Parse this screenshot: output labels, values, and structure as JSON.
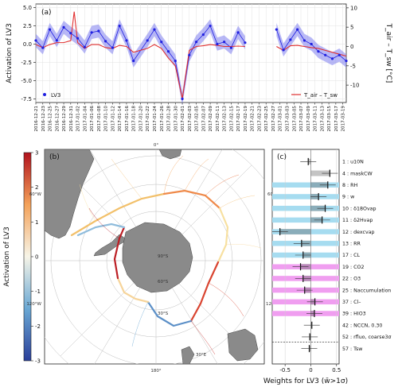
{
  "chart_data": [
    {
      "type": "line",
      "panel": "(a)",
      "ylabel": "Activation of LV3",
      "y2label": "T_air – T_sw [°C]",
      "ylim": [
        -8,
        5.5
      ],
      "yticks": [
        -7.5,
        -5.0,
        -2.5,
        0.0,
        2.5,
        5.0
      ],
      "y2lim": [
        -14.5,
        11
      ],
      "y2ticks": [
        -10,
        -5,
        0,
        5,
        10
      ],
      "xlim": [
        "2016-12-21",
        "2017-03-20"
      ],
      "x_tick_labels": [
        "2016-12-21",
        "2016-12-23",
        "2016-12-25",
        "2016-12-27",
        "2016-12-29",
        "2016-12-31",
        "2017-01-02",
        "2017-01-04",
        "2017-01-06",
        "2017-01-08",
        "2017-01-10",
        "2017-01-12",
        "2017-01-14",
        "2017-01-16",
        "2017-01-18",
        "2017-01-20",
        "2017-01-22",
        "2017-01-24",
        "2017-01-26",
        "2017-01-28",
        "2017-01-30",
        "2017-02-01",
        "2017-02-03",
        "2017-02-05",
        "2017-02-07",
        "2017-02-09",
        "2017-02-11",
        "2017-02-13",
        "2017-02-15",
        "2017-02-17",
        "2017-02-19",
        "2017-02-21",
        "2017-02-23",
        "2017-02-25",
        "2017-02-27",
        "2017-03-01",
        "2017-03-03",
        "2017-03-05",
        "2017-03-07",
        "2017-03-09",
        "2017-03-11",
        "2017-03-13",
        "2017-03-15",
        "2017-03-17",
        "2017-03-19"
      ],
      "grid": true,
      "series": [
        {
          "name": "LV3",
          "style": "points with ±1σ band",
          "color": "#1f1fe0",
          "band_color": "#7d7dee",
          "x": [
            "2016-12-21",
            "2016-12-23",
            "2016-12-25",
            "2016-12-27",
            "2016-12-29",
            "2016-12-31",
            "2017-01-02",
            "2017-01-04",
            "2017-01-06",
            "2017-01-08",
            "2017-01-10",
            "2017-01-12",
            "2017-01-14",
            "2017-01-16",
            "2017-01-18",
            "2017-01-22",
            "2017-01-24",
            "2017-01-26",
            "2017-01-28",
            "2017-01-30",
            "2017-02-01",
            "2017-02-03",
            "2017-02-05",
            "2017-02-07",
            "2017-02-09",
            "2017-02-11",
            "2017-02-13",
            "2017-02-15",
            "2017-02-17",
            "2017-02-19",
            "2017-02-28",
            "2017-03-02",
            "2017-03-04",
            "2017-03-06",
            "2017-03-08",
            "2017-03-10",
            "2017-03-12",
            "2017-03-14",
            "2017-03-16",
            "2017-03-18",
            "2017-03-20"
          ],
          "values": [
            0.5,
            -0.5,
            2.0,
            0.5,
            2.3,
            1.5,
            0.8,
            -0.4,
            1.6,
            1.8,
            0.4,
            -0.5,
            2.5,
            0.5,
            -2.3,
            0.5,
            2.0,
            0.3,
            -1.0,
            -2.3,
            -7.5,
            -1.5,
            0.3,
            1.3,
            2.5,
            0.0,
            0.3,
            -0.5,
            1.6,
            0.2,
            2.0,
            -0.8,
            0.6,
            2.0,
            0.5,
            0.0,
            -1.0,
            -1.5,
            -2.0,
            -1.5,
            -2.3
          ]
        },
        {
          "name": "T_air – T_sw",
          "style": "line",
          "color": "#e03030",
          "axis": "right",
          "x": [
            "2016-12-21",
            "2016-12-23",
            "2016-12-25",
            "2016-12-27",
            "2016-12-29",
            "2016-12-31",
            "2017-01-01",
            "2017-01-02",
            "2017-01-04",
            "2017-01-06",
            "2017-01-08",
            "2017-01-10",
            "2017-01-12",
            "2017-01-14",
            "2017-01-16",
            "2017-01-18",
            "2017-01-22",
            "2017-01-24",
            "2017-01-26",
            "2017-01-28",
            "2017-01-30",
            "2017-02-01",
            "2017-02-03",
            "2017-02-05",
            "2017-02-07",
            "2017-02-09",
            "2017-02-11",
            "2017-02-13",
            "2017-02-15",
            "2017-02-17",
            "2017-02-19",
            "2017-02-28",
            "2017-03-02",
            "2017-03-04",
            "2017-03-06",
            "2017-03-08",
            "2017-03-10",
            "2017-03-12",
            "2017-03-14",
            "2017-03-16",
            "2017-03-18",
            "2017-03-20"
          ],
          "values": [
            0.5,
            -0.3,
            0.5,
            1.0,
            1.0,
            1.5,
            9.0,
            1.0,
            -0.5,
            0.5,
            0.5,
            -0.3,
            -0.5,
            0.3,
            0.0,
            -1.5,
            -0.5,
            0.5,
            -0.5,
            -3.0,
            -5.0,
            -13.5,
            -1.0,
            0.0,
            0.2,
            0.5,
            0.3,
            0.0,
            0.0,
            0.1,
            0.0,
            0.0,
            -1.0,
            0.2,
            0.3,
            0.0,
            -0.3,
            -0.5,
            -1.0,
            -1.5,
            -2.0,
            -2.5
          ]
        }
      ],
      "legend": [
        {
          "label": "LV3",
          "placement": "lower-left"
        },
        {
          "label": "T_air – T_sw",
          "placement": "lower-right"
        }
      ]
    },
    {
      "type": "map",
      "panel": "(b)",
      "colorbar_label": "Activation of LV3",
      "colorbar_range": [
        -3,
        3
      ],
      "colorbar_ticks": [
        -3,
        -2,
        -1,
        0,
        1,
        2,
        3
      ],
      "lon_labels": [
        "0°",
        "60°E",
        "120°E",
        "180°",
        "120°W",
        "60°W",
        "30°E"
      ],
      "lat_labels": [
        "30°S",
        "60°S",
        "90°S"
      ]
    },
    {
      "type": "bar",
      "panel": "(c)",
      "xlabel": "Weights for LV3 (w̄>1σ)",
      "xlim": [
        -0.75,
        0.55
      ],
      "xticks": [
        -0.5,
        0.0,
        0.5
      ],
      "grid": true,
      "categories": [
        "1 : u10N",
        "4 : maskCW",
        "8 : RH",
        "9 : w",
        "10 : δ18Ovap",
        "11 : δ2Hvap",
        "12 : dexcvap",
        "13 : RR",
        "17 : CL",
        "19 : CO2",
        "22 : O3",
        "25 : Naccumulation",
        "37 : Cl–",
        "39 : HIO3",
        "42 : NCCN, 0.30",
        "52 : rfluo, coarse3σ",
        "57 : Tsw"
      ],
      "values": [
        -0.05,
        0.37,
        0.33,
        0.15,
        0.28,
        0.22,
        -0.6,
        -0.18,
        -0.15,
        -0.2,
        -0.15,
        -0.12,
        0.08,
        0.07,
        0.02,
        -0.02,
        -0.03
      ],
      "highlight": [
        "none",
        "none",
        "blue",
        "blue",
        "blue",
        "blue",
        "blue",
        "blue",
        "blue",
        "magenta",
        "magenta",
        "magenta",
        "magenta",
        "magenta",
        "none",
        "none",
        "none"
      ],
      "colors": {
        "blue": "#a6dcf0",
        "magenta": "#f09ef0"
      }
    }
  ]
}
